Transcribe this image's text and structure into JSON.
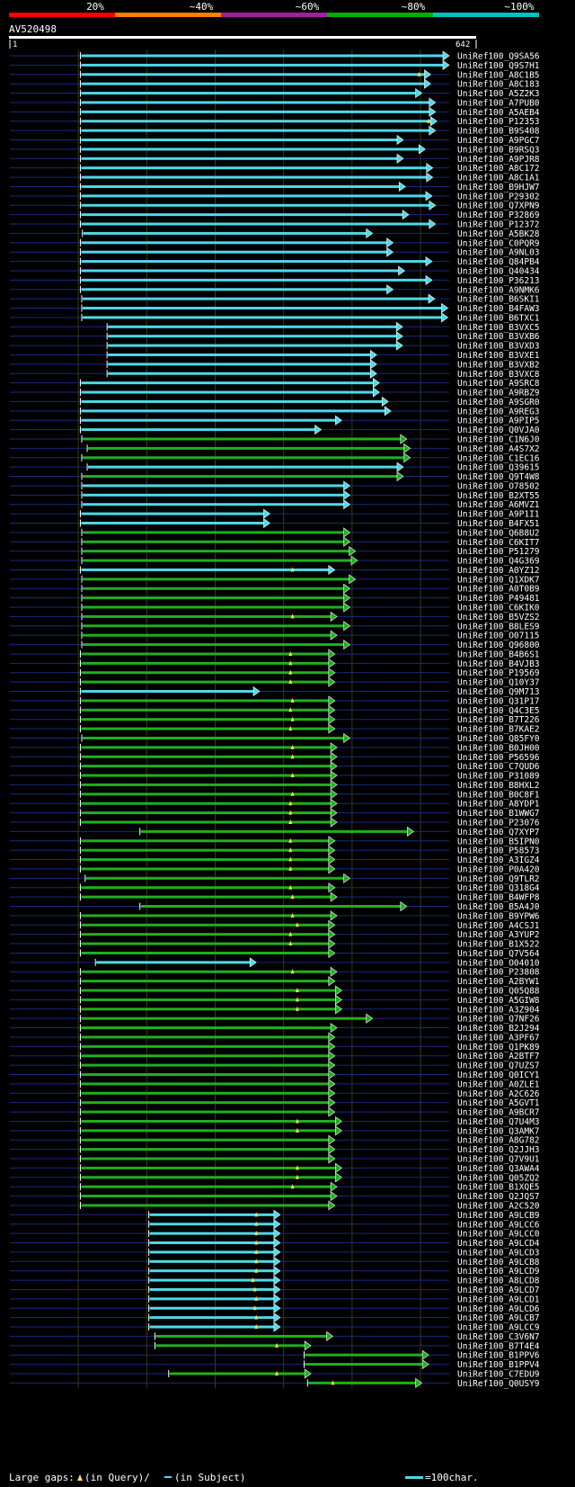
{
  "query": {
    "name": "AV520498",
    "start": "1",
    "end": "642",
    "length": 642
  },
  "identity_scale": {
    "labels": [
      "20%",
      "~40%",
      "~60%",
      "~80%",
      "~100%"
    ],
    "colors": [
      "#ff0000",
      "#ff7f00",
      "#a020a0",
      "#00b000",
      "#00c0c0"
    ]
  },
  "footer": {
    "gaps_prefix": "Large gaps:",
    "gaps_query": "(in Query)/",
    "gaps_subject": "(in Subject)",
    "scale_label": "=100char."
  },
  "colors": {
    "cyan": "#4dd9e8",
    "green": "#1fb01f",
    "backbone": "#1a2a80",
    "grid": "#3a3a14"
  },
  "hits": [
    {
      "id": "UniRef100_Q9SA56",
      "c": "cyan",
      "start": 103,
      "end": 642
    },
    {
      "id": "UniRef100_Q9S7H1",
      "c": "cyan",
      "start": 103,
      "end": 642
    },
    {
      "id": "UniRef100_A8C1B5",
      "c": "cyan",
      "start": 103,
      "end": 615,
      "gap": 598
    },
    {
      "id": "UniRef100_A8C183",
      "c": "cyan",
      "start": 103,
      "end": 615
    },
    {
      "id": "UniRef100_A5Z2K3",
      "c": "cyan",
      "start": 103,
      "end": 602
    },
    {
      "id": "UniRef100_A7PUB0",
      "c": "cyan",
      "start": 103,
      "end": 622
    },
    {
      "id": "UniRef100_A5AEB4",
      "c": "cyan",
      "start": 103,
      "end": 622
    },
    {
      "id": "UniRef100_P12353",
      "c": "cyan",
      "start": 103,
      "end": 624,
      "gap": 612
    },
    {
      "id": "UniRef100_B9S408",
      "c": "cyan",
      "start": 103,
      "end": 622
    },
    {
      "id": "UniRef100_A9PGC7",
      "c": "cyan",
      "start": 103,
      "end": 575
    },
    {
      "id": "UniRef100_B9RSQ3",
      "c": "cyan",
      "start": 103,
      "end": 607
    },
    {
      "id": "UniRef100_A9PJR8",
      "c": "cyan",
      "start": 103,
      "end": 575
    },
    {
      "id": "UniRef100_A8C172",
      "c": "cyan",
      "start": 103,
      "end": 618
    },
    {
      "id": "UniRef100_A8C1A1",
      "c": "cyan",
      "start": 103,
      "end": 618
    },
    {
      "id": "UniRef100_B9HJW7",
      "c": "cyan",
      "start": 103,
      "end": 578
    },
    {
      "id": "UniRef100_P29302",
      "c": "cyan",
      "start": 103,
      "end": 617
    },
    {
      "id": "UniRef100_Q7XPN9",
      "c": "cyan",
      "start": 103,
      "end": 622
    },
    {
      "id": "UniRef100_P32869",
      "c": "cyan",
      "start": 103,
      "end": 583
    },
    {
      "id": "UniRef100_P12372",
      "c": "cyan",
      "start": 103,
      "end": 622
    },
    {
      "id": "UniRef100_A5BK28",
      "c": "cyan",
      "start": 106,
      "end": 530
    },
    {
      "id": "UniRef100_C0PQR9",
      "c": "cyan",
      "start": 103,
      "end": 560
    },
    {
      "id": "UniRef100_A9NL03",
      "c": "cyan",
      "start": 103,
      "end": 560
    },
    {
      "id": "UniRef100_Q84PB4",
      "c": "cyan",
      "start": 103,
      "end": 617
    },
    {
      "id": "UniRef100_Q40434",
      "c": "cyan",
      "start": 103,
      "end": 577
    },
    {
      "id": "UniRef100_P36213",
      "c": "cyan",
      "start": 103,
      "end": 617
    },
    {
      "id": "UniRef100_A9NMK6",
      "c": "cyan",
      "start": 103,
      "end": 560
    },
    {
      "id": "UniRef100_B6SKI1",
      "c": "cyan",
      "start": 105,
      "end": 621
    },
    {
      "id": "UniRef100_B4FAW3",
      "c": "cyan",
      "start": 105,
      "end": 640
    },
    {
      "id": "UniRef100_B6TXC1",
      "c": "cyan",
      "start": 105,
      "end": 640
    },
    {
      "id": "UniRef100_B3VXC5",
      "c": "cyan",
      "start": 142,
      "end": 574
    },
    {
      "id": "UniRef100_B3VXB6",
      "c": "cyan",
      "start": 142,
      "end": 574
    },
    {
      "id": "UniRef100_B3VXD3",
      "c": "cyan",
      "start": 142,
      "end": 574
    },
    {
      "id": "UniRef100_B3VXE1",
      "c": "cyan",
      "start": 142,
      "end": 536
    },
    {
      "id": "UniRef100_B3VXB2",
      "c": "cyan",
      "start": 142,
      "end": 536
    },
    {
      "id": "UniRef100_B3VXC8",
      "c": "cyan",
      "start": 142,
      "end": 536
    },
    {
      "id": "UniRef100_A9SRC8",
      "c": "cyan",
      "start": 103,
      "end": 540
    },
    {
      "id": "UniRef100_A9RBZ9",
      "c": "cyan",
      "start": 103,
      "end": 540
    },
    {
      "id": "UniRef100_A9SGR0",
      "c": "cyan",
      "start": 103,
      "end": 553
    },
    {
      "id": "UniRef100_A9REG3",
      "c": "cyan",
      "start": 103,
      "end": 557
    },
    {
      "id": "UniRef100_A9PIP5",
      "c": "cyan",
      "start": 103,
      "end": 485
    },
    {
      "id": "UniRef100_Q0VJA0",
      "c": "cyan",
      "start": 103,
      "end": 455
    },
    {
      "id": "UniRef100_C1N6J0",
      "c": "green",
      "start": 105,
      "end": 580
    },
    {
      "id": "UniRef100_A4S7X2",
      "c": "green",
      "start": 113,
      "end": 585
    },
    {
      "id": "UniRef100_C1EC16",
      "c": "green",
      "start": 105,
      "end": 585
    },
    {
      "id": "UniRef100_Q39615",
      "c": "cyan",
      "start": 113,
      "end": 575
    },
    {
      "id": "UniRef100_Q9T4W8",
      "c": "green",
      "start": 105,
      "end": 575
    },
    {
      "id": "UniRef100_O78502",
      "c": "cyan",
      "start": 105,
      "end": 497
    },
    {
      "id": "UniRef100_B2XT55",
      "c": "cyan",
      "start": 105,
      "end": 497
    },
    {
      "id": "UniRef100_A6MVZ1",
      "c": "cyan",
      "start": 105,
      "end": 497
    },
    {
      "id": "UniRef100_A9P1I1",
      "c": "cyan",
      "start": 103,
      "end": 380
    },
    {
      "id": "UniRef100_B4FX51",
      "c": "cyan",
      "start": 103,
      "end": 380
    },
    {
      "id": "UniRef100_Q6B8U2",
      "c": "green",
      "start": 105,
      "end": 497
    },
    {
      "id": "UniRef100_C6KIT7",
      "c": "green",
      "start": 105,
      "end": 497
    },
    {
      "id": "UniRef100_P51279",
      "c": "green",
      "start": 105,
      "end": 505
    },
    {
      "id": "UniRef100_Q4G369",
      "c": "green",
      "start": 105,
      "end": 508
    },
    {
      "id": "UniRef100_A0YZ12",
      "c": "cyan",
      "start": 103,
      "end": 475,
      "gap": 413
    },
    {
      "id": "UniRef100_Q1XDK7",
      "c": "green",
      "start": 105,
      "end": 505
    },
    {
      "id": "UniRef100_A0T0B9",
      "c": "green",
      "start": 105,
      "end": 497
    },
    {
      "id": "UniRef100_P49481",
      "c": "green",
      "start": 105,
      "end": 497
    },
    {
      "id": "UniRef100_C6KIK0",
      "c": "green",
      "start": 105,
      "end": 497
    },
    {
      "id": "UniRef100_B5VZS2",
      "c": "green",
      "start": 105,
      "end": 478,
      "gap": 413
    },
    {
      "id": "UniRef100_B8LES9",
      "c": "green",
      "start": 105,
      "end": 497
    },
    {
      "id": "UniRef100_O07115",
      "c": "green",
      "start": 105,
      "end": 478
    },
    {
      "id": "UniRef100_Q96800",
      "c": "green",
      "start": 105,
      "end": 497
    },
    {
      "id": "UniRef100_B4B6S1",
      "c": "green",
      "start": 103,
      "end": 475,
      "gap": 410
    },
    {
      "id": "UniRef100_B4VJB3",
      "c": "green",
      "start": 103,
      "end": 475,
      "gap": 410
    },
    {
      "id": "UniRef100_P19569",
      "c": "green",
      "start": 103,
      "end": 475,
      "gap": 410
    },
    {
      "id": "UniRef100_Q10Y37",
      "c": "green",
      "start": 103,
      "end": 475,
      "gap": 410
    },
    {
      "id": "UniRef100_Q9M713",
      "c": "cyan",
      "start": 103,
      "end": 365
    },
    {
      "id": "UniRef100_Q31P17",
      "c": "green",
      "start": 103,
      "end": 475,
      "gap": 413
    },
    {
      "id": "UniRef100_Q4C3E5",
      "c": "green",
      "start": 103,
      "end": 475,
      "gap": 410
    },
    {
      "id": "UniRef100_B7T226",
      "c": "green",
      "start": 103,
      "end": 475,
      "gap": 413
    },
    {
      "id": "UniRef100_B7KAE2",
      "c": "green",
      "start": 103,
      "end": 475,
      "gap": 410
    },
    {
      "id": "UniRef100_Q85FY0",
      "c": "green",
      "start": 105,
      "end": 497
    },
    {
      "id": "UniRef100_B0JH00",
      "c": "green",
      "start": 103,
      "end": 478,
      "gap": 413
    },
    {
      "id": "UniRef100_P56596",
      "c": "green",
      "start": 103,
      "end": 478,
      "gap": 413
    },
    {
      "id": "UniRef100_C7QUD6",
      "c": "green",
      "start": 103,
      "end": 478
    },
    {
      "id": "UniRef100_P31089",
      "c": "green",
      "start": 103,
      "end": 478,
      "gap": 413
    },
    {
      "id": "UniRef100_B8HXL2",
      "c": "green",
      "start": 103,
      "end": 478
    },
    {
      "id": "UniRef100_B0C8F1",
      "c": "green",
      "start": 103,
      "end": 478,
      "gap": 413
    },
    {
      "id": "UniRef100_A8YDP1",
      "c": "green",
      "start": 103,
      "end": 478,
      "gap": 410
    },
    {
      "id": "UniRef100_B1WWG7",
      "c": "green",
      "start": 103,
      "end": 478,
      "gap": 410
    },
    {
      "id": "UniRef100_P23076",
      "c": "green",
      "start": 103,
      "end": 478,
      "gap": 410
    },
    {
      "id": "UniRef100_Q7XYP7",
      "c": "green",
      "start": 190,
      "end": 590
    },
    {
      "id": "UniRef100_B5IPN0",
      "c": "green",
      "start": 103,
      "end": 475,
      "gap": 410
    },
    {
      "id": "UniRef100_P58573",
      "c": "green",
      "start": 103,
      "end": 475,
      "gap": 410
    },
    {
      "id": "UniRef100_A3IGZ4",
      "c": "green",
      "start": 103,
      "end": 475,
      "gap": 410
    },
    {
      "id": "UniRef100_P0A420",
      "c": "green",
      "start": 103,
      "end": 475,
      "gap": 410
    },
    {
      "id": "UniRef100_Q9TLR2",
      "c": "green",
      "start": 110,
      "end": 497
    },
    {
      "id": "UniRef100_Q318G4",
      "c": "green",
      "start": 103,
      "end": 475,
      "gap": 410
    },
    {
      "id": "UniRef100_B4WFP8",
      "c": "green",
      "start": 103,
      "end": 478,
      "gap": 413
    },
    {
      "id": "UniRef100_B5A4J0",
      "c": "green",
      "start": 190,
      "end": 580
    },
    {
      "id": "UniRef100_B9YPW6",
      "c": "green",
      "start": 103,
      "end": 478,
      "gap": 413
    },
    {
      "id": "UniRef100_A4CSJ1",
      "c": "green",
      "start": 103,
      "end": 475,
      "gap": 420
    },
    {
      "id": "UniRef100_A3YUP2",
      "c": "green",
      "start": 103,
      "end": 475,
      "gap": 410
    },
    {
      "id": "UniRef100_B1X522",
      "c": "green",
      "start": 103,
      "end": 475,
      "gap": 410
    },
    {
      "id": "UniRef100_Q7V564",
      "c": "green",
      "start": 103,
      "end": 475
    },
    {
      "id": "UniRef100_O04010",
      "c": "cyan",
      "start": 125,
      "end": 360
    },
    {
      "id": "UniRef100_P23808",
      "c": "green",
      "start": 103,
      "end": 478,
      "gap": 413
    },
    {
      "id": "UniRef100_A2BYW1",
      "c": "green",
      "start": 103,
      "end": 475
    },
    {
      "id": "UniRef100_Q05Q88",
      "c": "green",
      "start": 103,
      "end": 485,
      "gap": 420
    },
    {
      "id": "UniRef100_A5GIW8",
      "c": "green",
      "start": 103,
      "end": 485,
      "gap": 420
    },
    {
      "id": "UniRef100_A3Z904",
      "c": "green",
      "start": 103,
      "end": 485,
      "gap": 420
    },
    {
      "id": "UniRef100_Q7NF26",
      "c": "green",
      "start": 103,
      "end": 530
    },
    {
      "id": "UniRef100_B2J294",
      "c": "green",
      "start": 103,
      "end": 478
    },
    {
      "id": "UniRef100_A3PF67",
      "c": "green",
      "start": 103,
      "end": 475
    },
    {
      "id": "UniRef100_Q1PK89",
      "c": "green",
      "start": 103,
      "end": 475
    },
    {
      "id": "UniRef100_A2BTF7",
      "c": "green",
      "start": 103,
      "end": 475
    },
    {
      "id": "UniRef100_Q7UZS7",
      "c": "green",
      "start": 103,
      "end": 475
    },
    {
      "id": "UniRef100_Q0ICY1",
      "c": "green",
      "start": 103,
      "end": 475
    },
    {
      "id": "UniRef100_A0ZLE1",
      "c": "green",
      "start": 103,
      "end": 475
    },
    {
      "id": "UniRef100_A2C626",
      "c": "green",
      "start": 103,
      "end": 475
    },
    {
      "id": "UniRef100_A5GVT1",
      "c": "green",
      "start": 103,
      "end": 475
    },
    {
      "id": "UniRef100_A9BCR7",
      "c": "green",
      "start": 103,
      "end": 475
    },
    {
      "id": "UniRef100_Q7U4M3",
      "c": "green",
      "start": 103,
      "end": 485,
      "gap": 420
    },
    {
      "id": "UniRef100_Q3AMK7",
      "c": "green",
      "start": 103,
      "end": 485,
      "gap": 420
    },
    {
      "id": "UniRef100_A8G782",
      "c": "green",
      "start": 103,
      "end": 475
    },
    {
      "id": "UniRef100_Q2JJH3",
      "c": "green",
      "start": 103,
      "end": 475
    },
    {
      "id": "UniRef100_Q7V9U1",
      "c": "green",
      "start": 103,
      "end": 475
    },
    {
      "id": "UniRef100_Q3AWA4",
      "c": "green",
      "start": 103,
      "end": 485,
      "gap": 420
    },
    {
      "id": "UniRef100_Q05ZQ2",
      "c": "green",
      "start": 103,
      "end": 485,
      "gap": 420
    },
    {
      "id": "UniRef100_B1XQE5",
      "c": "green",
      "start": 103,
      "end": 478,
      "gap": 413
    },
    {
      "id": "UniRef100_Q2JQS7",
      "c": "green",
      "start": 103,
      "end": 478
    },
    {
      "id": "UniRef100_A2C520",
      "c": "green",
      "start": 103,
      "end": 475
    },
    {
      "id": "UniRef100_A9LCB9",
      "c": "cyan",
      "start": 203,
      "end": 395,
      "gap": 360
    },
    {
      "id": "UniRef100_A9LCC6",
      "c": "cyan",
      "start": 203,
      "end": 395,
      "gap": 360
    },
    {
      "id": "UniRef100_A9LCC0",
      "c": "cyan",
      "start": 203,
      "end": 395,
      "gap": 360
    },
    {
      "id": "UniRef100_A9LCD4",
      "c": "cyan",
      "start": 203,
      "end": 395,
      "gap": 360
    },
    {
      "id": "UniRef100_A9LCD3",
      "c": "cyan",
      "start": 203,
      "end": 395,
      "gap": 360
    },
    {
      "id": "UniRef100_A9LCB8",
      "c": "cyan",
      "start": 203,
      "end": 395,
      "gap": 360
    },
    {
      "id": "UniRef100_A9LCD9",
      "c": "cyan",
      "start": 203,
      "end": 395,
      "gap": 360
    },
    {
      "id": "UniRef100_A8LCD8",
      "c": "cyan",
      "start": 203,
      "end": 395,
      "gap": 355
    },
    {
      "id": "UniRef100_A9LCD7",
      "c": "cyan",
      "start": 203,
      "end": 395,
      "gap": 358
    },
    {
      "id": "UniRef100_A9LCD1",
      "c": "cyan",
      "start": 203,
      "end": 395,
      "gap": 360
    },
    {
      "id": "UniRef100_A9LCD6",
      "c": "cyan",
      "start": 203,
      "end": 395,
      "gap": 358
    },
    {
      "id": "UniRef100_A9LCB7",
      "c": "cyan",
      "start": 203,
      "end": 395,
      "gap": 360
    },
    {
      "id": "UniRef100_A9LCC9",
      "c": "cyan",
      "start": 203,
      "end": 395,
      "gap": 360
    },
    {
      "id": "UniRef100_C3V6N7",
      "c": "green",
      "start": 212,
      "end": 472
    },
    {
      "id": "UniRef100_B7T4E4",
      "c": "green",
      "start": 212,
      "end": 440,
      "gap": 390
    },
    {
      "id": "UniRef100_B1PPV6",
      "c": "green",
      "start": 430,
      "end": 612
    },
    {
      "id": "UniRef100_B1PPV4",
      "c": "green",
      "start": 430,
      "end": 612
    },
    {
      "id": "UniRef100_C7EDU9",
      "c": "green",
      "start": 232,
      "end": 440,
      "gap": 390
    },
    {
      "id": "UniRef100_Q0USY9",
      "c": "green",
      "start": 435,
      "end": 602,
      "gap": 472
    }
  ]
}
